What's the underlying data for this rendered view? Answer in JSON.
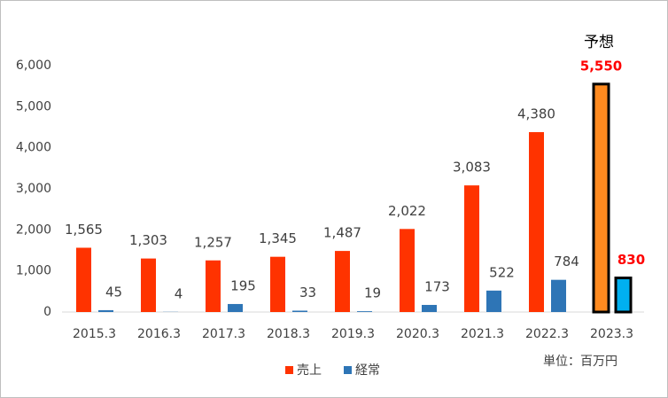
{
  "chart_data": {
    "type": "bar",
    "categories": [
      "2015.3",
      "2016.3",
      "2017.3",
      "2018.3",
      "2019.3",
      "2020.3",
      "2021.3",
      "2022.3",
      "2023.3"
    ],
    "series": [
      {
        "name": "売上",
        "color": "#ff3300",
        "values": [
          1565,
          1303,
          1257,
          1345,
          1487,
          2022,
          3083,
          4380,
          5550
        ],
        "value_labels": [
          "1,565",
          "1,303",
          "1,257",
          "1,345",
          "1,487",
          "2,022",
          "3,083",
          "4,380",
          "5,550"
        ],
        "point_colors": [
          null,
          null,
          null,
          null,
          null,
          null,
          null,
          null,
          "#ff8a1f"
        ],
        "edge_colors": [
          null,
          null,
          null,
          null,
          null,
          null,
          null,
          null,
          "#000000"
        ],
        "label_colors": [
          null,
          null,
          null,
          null,
          null,
          null,
          null,
          null,
          "#ff0000"
        ]
      },
      {
        "name": "経常",
        "color": "#2e75b6",
        "values": [
          45,
          4,
          195,
          33,
          19,
          173,
          522,
          784,
          830
        ],
        "point_colors": [
          null,
          null,
          null,
          null,
          null,
          null,
          null,
          null,
          "#00b0f0"
        ],
        "edge_colors": [
          null,
          null,
          null,
          null,
          null,
          null,
          null,
          null,
          "#000000"
        ],
        "label_colors": [
          null,
          null,
          null,
          null,
          null,
          null,
          null,
          null,
          "#ff0000"
        ]
      }
    ],
    "ylim": [
      0,
      6000
    ],
    "yticks": [
      0,
      {
        "value": 1000,
        "label": "1,000"
      },
      {
        "value": 2000,
        "label": "2,000"
      },
      {
        "value": 3000,
        "label": "3,000"
      },
      {
        "value": 4000,
        "label": "4,000"
      },
      {
        "value": 5000,
        "label": "5,000"
      },
      {
        "value": 6000,
        "label": "6,000"
      }
    ],
    "grid": false,
    "legend": "bottom",
    "annotations": [
      "予想",
      "単位：百万円"
    ]
  }
}
